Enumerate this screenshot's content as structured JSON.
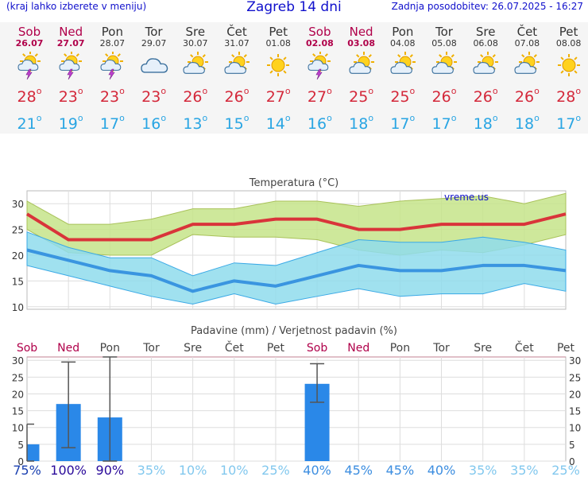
{
  "header": {
    "left_note": "(kraj lahko izberete v meniju)",
    "title": "Zagreb 14 dni",
    "updated": "Zadnja posodobitev: 26.07.2025 - 16:27"
  },
  "colors": {
    "weekend": "#b0004a",
    "weekday": "#333333",
    "max_temp": "#d4283a",
    "min_temp": "#29a5e3",
    "bar": "#2a88e8",
    "green_band": "#c6e48a",
    "blue_band": "#8fdcec"
  },
  "days": [
    {
      "name": "Sob",
      "date": "26.07",
      "weekend": true,
      "icon": "sun-cloud-thunder-icon",
      "tmax": "28",
      "tmin": "21"
    },
    {
      "name": "Ned",
      "date": "27.07",
      "weekend": true,
      "icon": "sun-cloud-thunder-icon",
      "tmax": "23",
      "tmin": "19"
    },
    {
      "name": "Pon",
      "date": "28.07",
      "weekend": false,
      "icon": "sun-cloud-thunder-icon",
      "tmax": "23",
      "tmin": "17"
    },
    {
      "name": "Tor",
      "date": "29.07",
      "weekend": false,
      "icon": "cloud-icon",
      "tmax": "23",
      "tmin": "16"
    },
    {
      "name": "Sre",
      "date": "30.07",
      "weekend": false,
      "icon": "sun-cloud-icon",
      "tmax": "26",
      "tmin": "13"
    },
    {
      "name": "Čet",
      "date": "31.07",
      "weekend": false,
      "icon": "sun-cloud-icon",
      "tmax": "26",
      "tmin": "15"
    },
    {
      "name": "Pet",
      "date": "01.08",
      "weekend": false,
      "icon": "sun-icon",
      "tmax": "27",
      "tmin": "14"
    },
    {
      "name": "Sob",
      "date": "02.08",
      "weekend": true,
      "icon": "sun-cloud-thunder-icon",
      "tmax": "27",
      "tmin": "16"
    },
    {
      "name": "Ned",
      "date": "03.08",
      "weekend": true,
      "icon": "sun-cloud-icon",
      "tmax": "25",
      "tmin": "18"
    },
    {
      "name": "Pon",
      "date": "04.08",
      "weekend": false,
      "icon": "sun-cloud-icon",
      "tmax": "25",
      "tmin": "17"
    },
    {
      "name": "Tor",
      "date": "05.08",
      "weekend": false,
      "icon": "sun-cloud-icon",
      "tmax": "26",
      "tmin": "17"
    },
    {
      "name": "Sre",
      "date": "06.08",
      "weekend": false,
      "icon": "sun-cloud-icon",
      "tmax": "26",
      "tmin": "18"
    },
    {
      "name": "Čet",
      "date": "07.08",
      "weekend": false,
      "icon": "sun-cloud-icon",
      "tmax": "26",
      "tmin": "18"
    },
    {
      "name": "Pet",
      "date": "08.08",
      "weekend": false,
      "icon": "sun-icon",
      "tmax": "28",
      "tmin": "17"
    }
  ],
  "chart_data": [
    {
      "type": "line",
      "title": "Temperatura (°C)",
      "watermark": "vreme.us",
      "x": [
        "26.07",
        "27.07",
        "28.07",
        "29.07",
        "30.07",
        "31.07",
        "01.08",
        "02.08",
        "03.08",
        "04.08",
        "05.08",
        "06.08",
        "07.08",
        "08.08"
      ],
      "yticks": [
        10,
        15,
        20,
        25,
        30
      ],
      "ylim": [
        9.5,
        32.5
      ],
      "grid": true,
      "series": [
        {
          "name": "max",
          "values": [
            28,
            23,
            23,
            23,
            26,
            26,
            27,
            27,
            25,
            25,
            26,
            26,
            26,
            28
          ]
        },
        {
          "name": "min",
          "values": [
            21,
            19,
            17,
            16,
            13,
            15,
            14,
            16,
            18,
            17,
            17,
            18,
            18,
            17
          ]
        }
      ],
      "max_band_upper": [
        30.5,
        26,
        26,
        27,
        29,
        29,
        30.5,
        30.5,
        29.5,
        30.5,
        31,
        31.5,
        30,
        32
      ],
      "max_band_lower": [
        25,
        20.5,
        20,
        20,
        24,
        23.5,
        23.5,
        23,
        21,
        20,
        21,
        20.5,
        22,
        24
      ],
      "min_band_upper": [
        24.5,
        21.5,
        19.5,
        19.5,
        16,
        18.5,
        18,
        20.5,
        23,
        22.5,
        22.5,
        23.5,
        22.5,
        21
      ],
      "min_band_lower": [
        18,
        16,
        14,
        12,
        10.5,
        12.5,
        10.5,
        12,
        13.5,
        12,
        12.5,
        12.5,
        14.5,
        13
      ]
    },
    {
      "type": "bar",
      "title": "Padavine (mm) / Verjetnost padavin (%)",
      "categories": [
        "Sob",
        "Ned",
        "Pon",
        "Tor",
        "Sre",
        "Čet",
        "Pet",
        "Sob",
        "Ned",
        "Pon",
        "Tor",
        "Sre",
        "Čet",
        "Pet"
      ],
      "weekend": [
        true,
        true,
        false,
        false,
        false,
        false,
        false,
        true,
        true,
        false,
        false,
        false,
        false,
        false
      ],
      "values": [
        5,
        17,
        13,
        0,
        0,
        0,
        0,
        23,
        0,
        0,
        0,
        0,
        0,
        0
      ],
      "err_low": [
        0,
        4,
        0,
        0,
        0,
        0,
        0,
        17.5,
        0,
        0,
        0,
        0,
        0,
        0
      ],
      "err_high": [
        11,
        29.5,
        31,
        0,
        0,
        0,
        0,
        29,
        0,
        0,
        0,
        0,
        0,
        0
      ],
      "probability": [
        "75%",
        "100%",
        "90%",
        "35%",
        "10%",
        "10%",
        "25%",
        "40%",
        "45%",
        "45%",
        "40%",
        "35%",
        "35%",
        "25%"
      ],
      "prob_values": [
        75,
        100,
        90,
        35,
        10,
        10,
        25,
        40,
        45,
        45,
        40,
        35,
        35,
        25
      ],
      "yticks": [
        0,
        5,
        10,
        15,
        20,
        25,
        30
      ],
      "ylim": [
        0,
        31
      ],
      "grid": true
    }
  ]
}
